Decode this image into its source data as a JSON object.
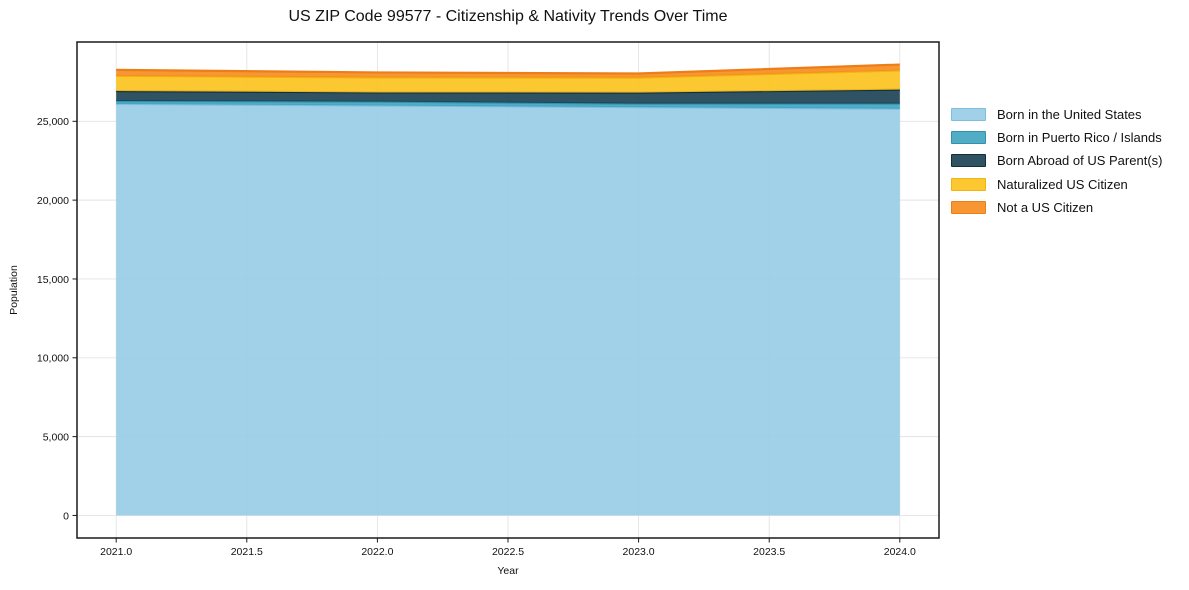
{
  "chart_data": {
    "type": "area",
    "stacked": true,
    "title": "US ZIP Code 99577 - Citizenship & Nativity Trends Over Time",
    "xlabel": "Year",
    "ylabel": "Population",
    "x": [
      2021,
      2022,
      2023,
      2024
    ],
    "series": [
      {
        "name": "Born in the United States",
        "color": "#97CCE7",
        "edge": "#7FBEDD",
        "values": [
          26100,
          26000,
          25900,
          25800
        ]
      },
      {
        "name": "Born in Puerto Rico / Islands",
        "color": "#3FA3BF",
        "edge": "#2E93B1",
        "values": [
          190,
          250,
          220,
          320
        ]
      },
      {
        "name": "Born Abroad of US Parent(s)",
        "color": "#1A4052",
        "edge": "#132F3C",
        "values": [
          630,
          580,
          700,
          890
        ]
      },
      {
        "name": "Naturalized US Citizen",
        "color": "#FCC21B",
        "edge": "#F3B410",
        "values": [
          960,
          950,
          950,
          1210
        ]
      },
      {
        "name": "Not a US Citizen",
        "color": "#F68C1E",
        "edge": "#EE7D16",
        "values": [
          380,
          320,
          260,
          380
        ]
      }
    ],
    "x_ticks": [
      {
        "v": 2021.0,
        "label": "2021.0"
      },
      {
        "v": 2021.5,
        "label": "2021.5"
      },
      {
        "v": 2022.0,
        "label": "2022.0"
      },
      {
        "v": 2022.5,
        "label": "2022.5"
      },
      {
        "v": 2023.0,
        "label": "2023.0"
      },
      {
        "v": 2023.5,
        "label": "2023.5"
      },
      {
        "v": 2024.0,
        "label": "2024.0"
      }
    ],
    "y_ticks": [
      {
        "v": 0,
        "label": "0"
      },
      {
        "v": 5000,
        "label": "5,000"
      },
      {
        "v": 10000,
        "label": "10,000"
      },
      {
        "v": 15000,
        "label": "15,000"
      },
      {
        "v": 20000,
        "label": "20,000"
      },
      {
        "v": 25000,
        "label": "25,000"
      }
    ],
    "xlim": [
      2020.85,
      2024.15
    ],
    "ylim": [
      -1430,
      30030
    ],
    "grid": true,
    "grid_color": "#e3e3e3",
    "spine_color": "#1a1a1a",
    "fill_opacity": 0.9,
    "legend_position": "right-outside"
  }
}
